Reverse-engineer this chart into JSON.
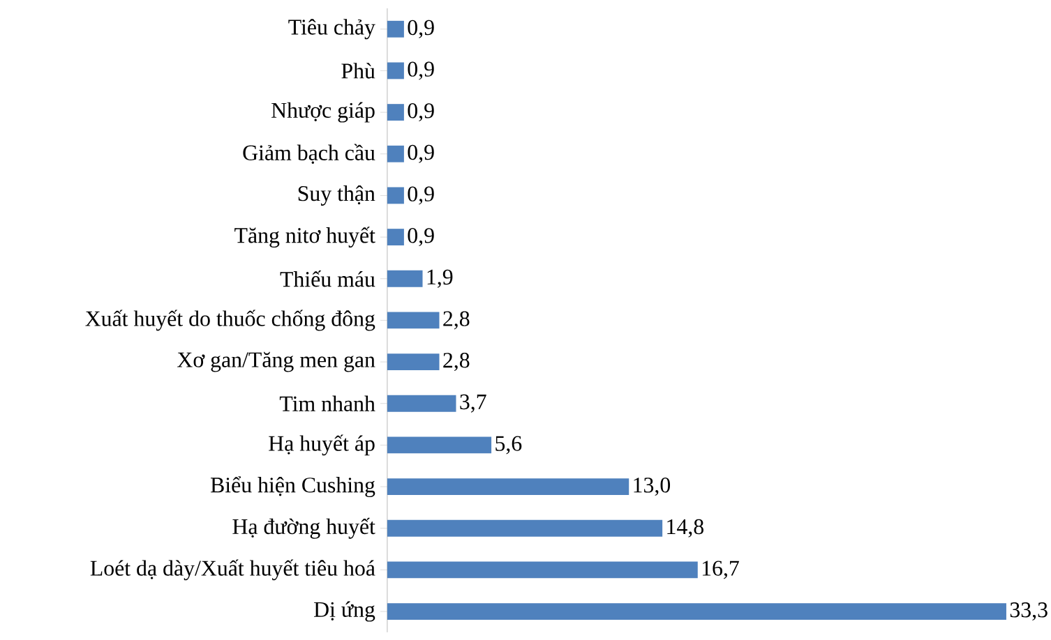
{
  "chart_data": {
    "type": "bar",
    "orientation": "horizontal",
    "color": "#4f81bd",
    "categories": [
      "Tiêu chảy",
      "Phù",
      "Nhược giáp",
      "Giảm bạch cầu",
      "Suy thận",
      "Tăng nitơ huyết",
      "Thiếu máu",
      "Xuất huyết do thuốc chống đông",
      "Xơ gan/Tăng men gan",
      "Tim nhanh",
      "Hạ huyết áp",
      "Biểu hiện Cushing",
      "Hạ đường huyết",
      "Loét dạ dày/Xuất huyết tiêu hoá",
      "Dị ứng"
    ],
    "values": [
      0.9,
      0.9,
      0.9,
      0.9,
      0.9,
      0.9,
      1.9,
      2.8,
      2.8,
      3.7,
      5.6,
      13.0,
      14.8,
      16.7,
      33.3
    ],
    "value_labels": [
      "0,9",
      "0,9",
      "0,9",
      "0,9",
      "0,9",
      "0,9",
      "1,9",
      "2,8",
      "2,8",
      "3,7",
      "5,6",
      "13,0",
      "14,8",
      "16,7",
      "33,3"
    ]
  }
}
